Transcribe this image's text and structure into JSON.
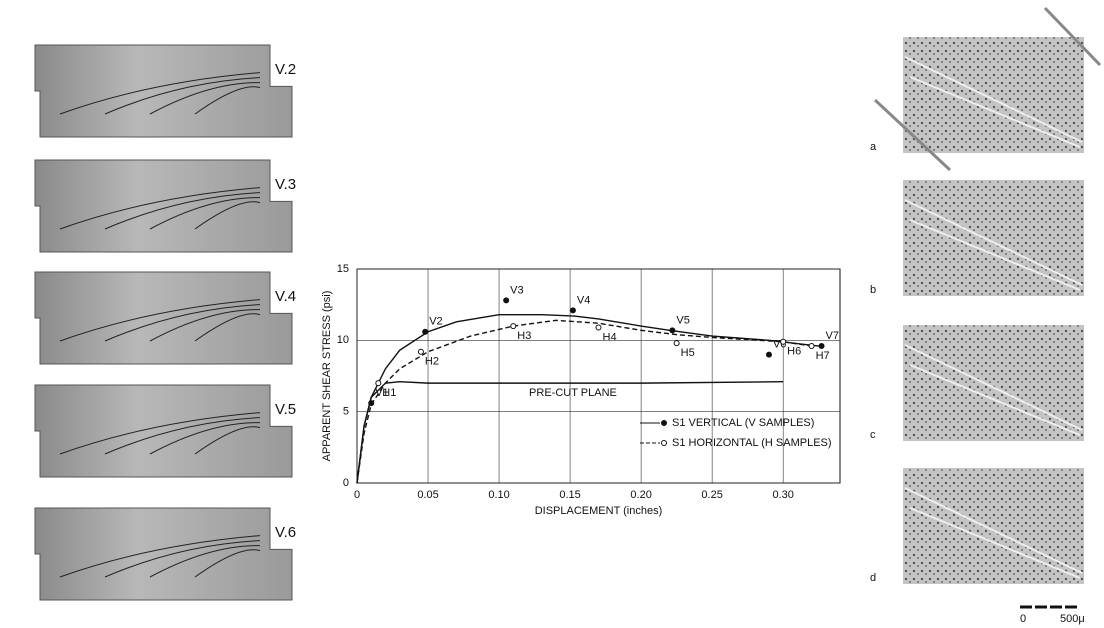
{
  "photos_left": [
    "V.2",
    "V.3",
    "V.4",
    "V.5",
    "V.6"
  ],
  "photos_right": [
    "a",
    "b",
    "c",
    "d"
  ],
  "scale_bar": [
    "0",
    "500μ"
  ],
  "chart_data": {
    "type": "line",
    "xlabel": "DISPLACEMENT   (inches)",
    "ylabel": "APPARENT SHEAR STRESS (psi)",
    "xlim": [
      0,
      0.34
    ],
    "ylim": [
      0,
      15
    ],
    "xticks": [
      0,
      0.05,
      {
        "value": 0.1,
        "label": "0.10"
      },
      0.15,
      {
        "value": 0.2,
        "label": "0.20"
      },
      0.25,
      {
        "value": 0.3,
        "label": "0.30"
      }
    ],
    "yticks": [
      0,
      5,
      10,
      15
    ],
    "grid": true,
    "legend": "lower right",
    "series": [
      {
        "name": "S1 VERTICAL (V SAMPLES)",
        "color": "#111",
        "dash": "solid",
        "marker": "filled",
        "x": [
          0,
          0.005,
          0.01,
          0.02,
          0.03,
          0.05,
          0.07,
          0.1,
          0.13,
          0.153,
          0.17,
          0.2,
          0.22,
          0.25,
          0.29,
          0.325
        ],
        "values": [
          0,
          4,
          6,
          8,
          9.3,
          10.6,
          11.3,
          11.8,
          11.8,
          11.7,
          11.5,
          11,
          10.7,
          10.3,
          10,
          9.6
        ],
        "points": [
          {
            "label": "V1",
            "x": 0.01,
            "y": 5.6
          },
          {
            "label": "V2",
            "x": 0.048,
            "y": 10.6
          },
          {
            "label": "V3",
            "x": 0.105,
            "y": 12.8
          },
          {
            "label": "V4",
            "x": 0.152,
            "y": 12.1
          },
          {
            "label": "V5",
            "x": 0.222,
            "y": 10.7
          },
          {
            "label": "V6",
            "x": 0.29,
            "y": 9
          },
          {
            "label": "V7",
            "x": 0.327,
            "y": 9.6
          }
        ]
      },
      {
        "name": "S1 HORIZONTAL (H SAMPLES)",
        "color": "#111",
        "dash": "dashed",
        "marker": "open",
        "x": [
          0,
          0.005,
          0.01,
          0.02,
          0.03,
          0.05,
          0.08,
          0.11,
          0.14,
          0.17,
          0.2,
          0.225,
          0.25,
          0.3,
          0.32
        ],
        "values": [
          0,
          3.5,
          5.5,
          7,
          8,
          9.2,
          10.3,
          11,
          11.4,
          11.2,
          10.7,
          10.4,
          10.2,
          9.9,
          9.6
        ],
        "points": [
          {
            "label": "H1",
            "x": 0.015,
            "y": 7
          },
          {
            "label": "H2",
            "x": 0.045,
            "y": 9.2
          },
          {
            "label": "H3",
            "x": 0.11,
            "y": 11
          },
          {
            "label": "H4",
            "x": 0.17,
            "y": 10.9
          },
          {
            "label": "H5",
            "x": 0.225,
            "y": 9.8
          },
          {
            "label": "H6",
            "x": 0.3,
            "y": 9.9
          },
          {
            "label": "H7",
            "x": 0.32,
            "y": 9.6
          }
        ]
      },
      {
        "name": "PRE-CUT PLANE",
        "color": "#111",
        "dash": "solid",
        "inline_label": true,
        "x": [
          0,
          0.005,
          0.01,
          0.02,
          0.03,
          0.05,
          0.1,
          0.2,
          0.3
        ],
        "values": [
          0,
          4,
          6,
          7,
          7.1,
          7,
          7,
          7,
          7.1
        ]
      }
    ]
  }
}
